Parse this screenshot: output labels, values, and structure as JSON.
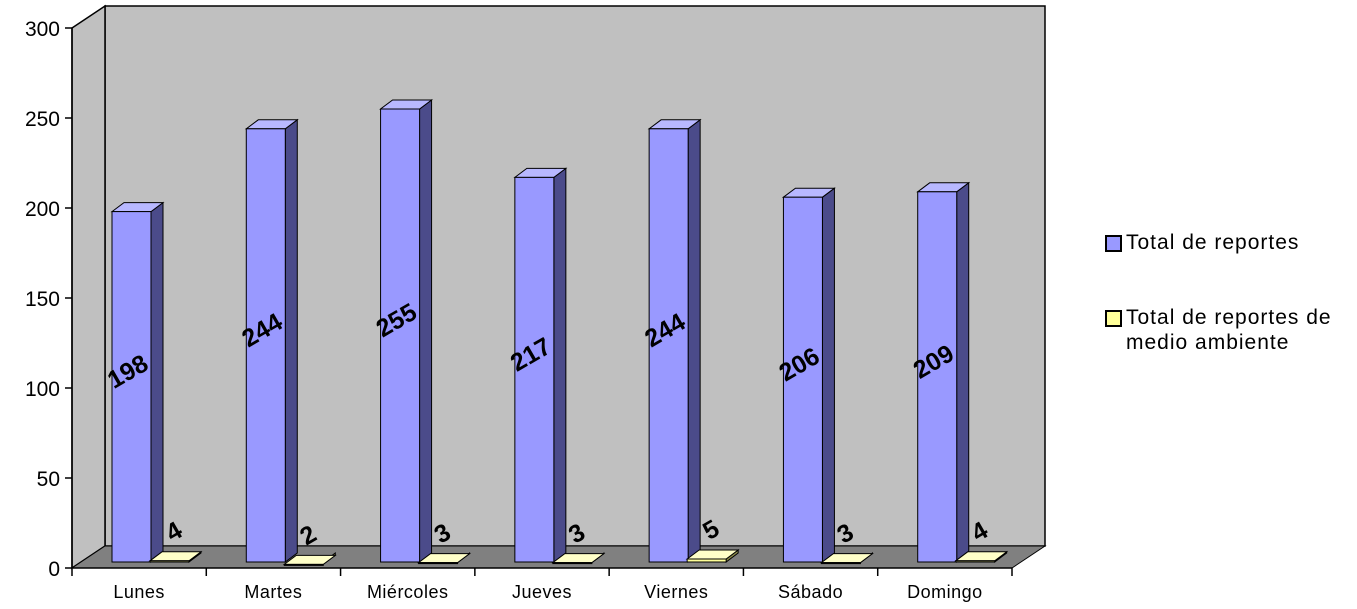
{
  "chart_data": {
    "type": "bar",
    "categories": [
      "Lunes",
      "Martes",
      "Miércoles",
      "Jueves",
      "Viernes",
      "Sábado",
      "Domingo"
    ],
    "series": [
      {
        "name": "Total de reportes",
        "values": [
          198,
          244,
          255,
          217,
          244,
          206,
          209
        ],
        "color": "#9999ff"
      },
      {
        "name": "Total de reportes de medio ambiente",
        "values": [
          4,
          2,
          3,
          3,
          5,
          3,
          4
        ],
        "color": "#ffff99"
      }
    ],
    "y_ticks": [
      "0",
      "50",
      "100",
      "150",
      "200",
      "250",
      "300"
    ],
    "ylim": [
      0,
      300
    ],
    "grid": false,
    "legend_position": "right",
    "style_3d": true,
    "colors": {
      "wall": "#c0c0c0",
      "floor": "#808080",
      "bar_blue_side": "#4b4b8a",
      "bar_yellow_side": "#8c8c4a"
    }
  }
}
